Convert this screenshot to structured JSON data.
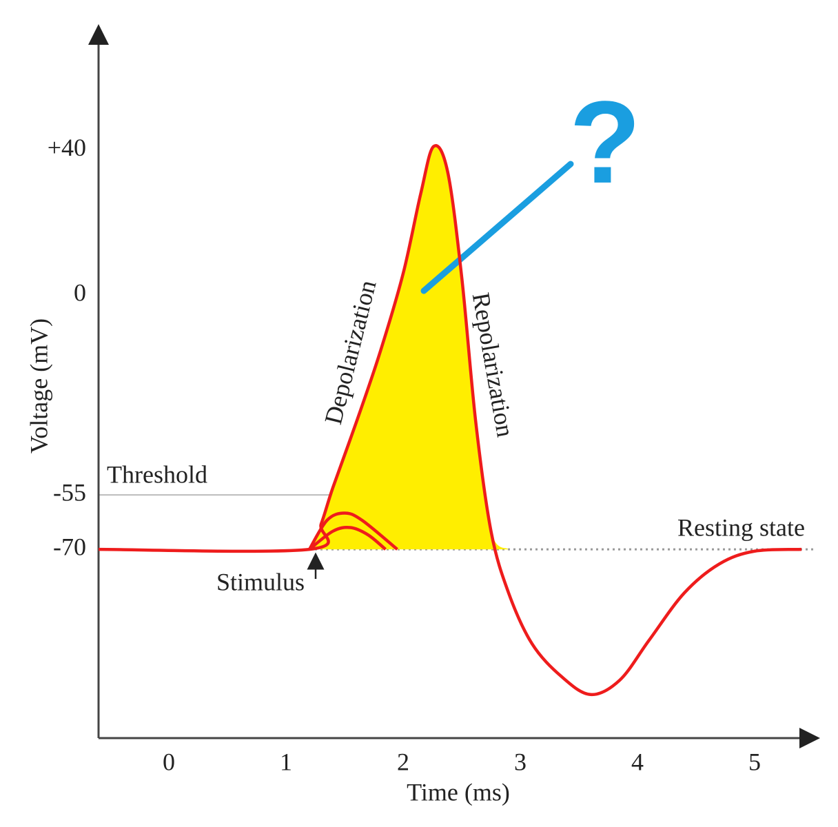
{
  "chart_data": {
    "type": "line",
    "x_label": "Time (ms)",
    "y_label": "Voltage (mV)",
    "xlim": [
      -0.6,
      5.5
    ],
    "ylim": [
      -122,
      73
    ],
    "xticks": [
      0,
      1,
      2,
      3,
      4,
      5
    ],
    "yticks": [
      {
        "value": 40,
        "label": "+40"
      },
      0,
      -55,
      -70
    ],
    "fill_color": "#ffee00",
    "series": [
      {
        "color": "#ee1c1c",
        "x": [
          -0.6,
          1.2,
          1.3,
          1.4,
          1.6,
          1.8,
          2.0,
          2.15,
          2.26,
          2.38,
          2.5,
          2.62,
          2.75,
          2.9,
          3.1,
          3.35,
          3.6,
          3.85,
          4.1,
          4.4,
          4.7,
          5.0,
          5.4
        ],
        "values": [
          -70,
          -70,
          -63,
          -53,
          -35,
          -16,
          6,
          28,
          41,
          34,
          5,
          -35,
          -65,
          -82,
          -96,
          -105,
          -110,
          -106,
          -95,
          -82,
          -74,
          -70.5,
          -70
        ]
      },
      {
        "color": "#ee1c1c",
        "x": [
          1.2,
          1.35,
          1.5,
          1.65,
          1.95
        ],
        "values": [
          -70,
          -62,
          -60,
          -62,
          -70
        ]
      },
      {
        "color": "#ee1c1c",
        "x": [
          1.2,
          1.4,
          1.55,
          1.7,
          1.85
        ],
        "values": [
          -70,
          -65,
          -64,
          -66,
          -70
        ]
      }
    ],
    "reference_lines": [
      {
        "value": -55,
        "label": "Threshold"
      },
      {
        "value": -70,
        "label": "Resting state"
      }
    ],
    "annotations": [
      {
        "text": "Depolarization"
      },
      {
        "text": "Repolarization"
      },
      {
        "text": "Stimulus"
      },
      {
        "text": "?"
      }
    ]
  }
}
